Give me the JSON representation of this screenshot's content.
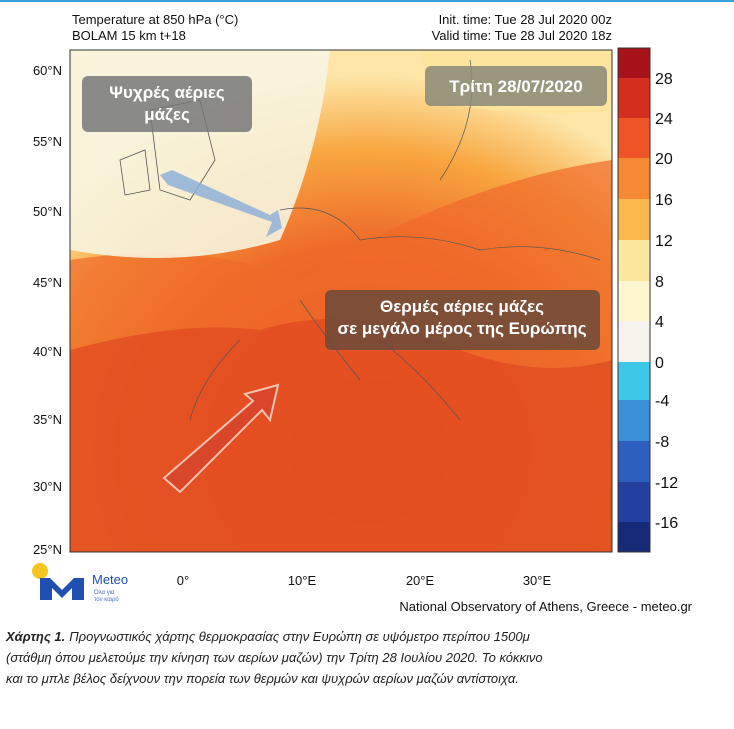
{
  "header": {
    "left": [
      "Temperature at 850 hPa (°C)",
      "BOLAM 15 km t+18"
    ],
    "right": [
      "Init. time: Tue 28 Jul 2020 00z",
      "Valid time: Tue 28 Jul 2020 18z"
    ]
  },
  "map": {
    "lat_labels": [
      "60°N",
      "55°N",
      "50°N",
      "45°N",
      "40°N",
      "35°N",
      "30°N",
      "25°N"
    ],
    "lon_labels": [
      "0°",
      "10°E",
      "20°E",
      "30°E"
    ],
    "date_label": "Τρίτη 28/07/2020",
    "cold_label": [
      "Ψυχρές αέριες",
      "μάζες"
    ],
    "warm_label": [
      "Θερμές αέριες μάζες",
      "σε μεγάλο μέρος της Ευρώπης"
    ]
  },
  "colorbar": {
    "labels": [
      28,
      24,
      20,
      16,
      12,
      8,
      4,
      0,
      -4,
      -8,
      -12,
      -16
    ]
  },
  "logo": {
    "name": "Meteo",
    "tagline": [
      "Όλα για",
      "τον καιρό"
    ]
  },
  "credit": "National Observatory of Athens, Greece - meteo.gr",
  "caption": {
    "label": "Χάρτης 1.",
    "lines": [
      "Προγνωστικός χάρτης θερμοκρασίας στην Ευρώπη σε υψόμετρο περίπου 1500μ",
      "(στάθμη όπου μελετούμε την κίνηση των αερίων μαζών) την Τρίτη 28 Ιουλίου 2020. Το κόκκινο",
      "και το μπλε βέλος δείχνουν την πορεία των θερμών και ψυχρών αερίων μαζών αντίστοιχα."
    ]
  }
}
